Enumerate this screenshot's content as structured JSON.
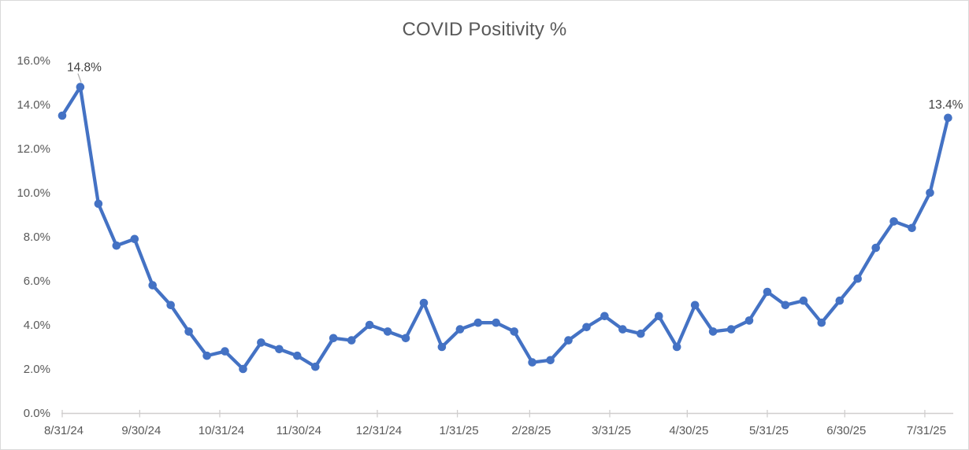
{
  "chart": {
    "colors": {
      "line": "#4472C4",
      "marker": "#4472C4",
      "title_text": "#595959",
      "axis_text": "#595959",
      "axis_line": "#D0CECE",
      "tick_mark": "#D0CECE",
      "data_label_text": "#404040",
      "leader_line": "#A6A6A6",
      "background": "#FFFFFF",
      "chart_border": "#D9D9D9"
    }
  },
  "chart_data": {
    "type": "line",
    "title": "COVID Positivity %",
    "series_name": "COVID Positivity %",
    "x": [
      "8/31/24",
      "9/7/24",
      "9/14/24",
      "9/21/24",
      "9/28/24",
      "10/5/24",
      "10/12/24",
      "10/19/24",
      "10/26/24",
      "11/2/24",
      "11/9/24",
      "11/16/24",
      "11/23/24",
      "11/30/24",
      "12/7/24",
      "12/14/24",
      "12/21/24",
      "12/28/24",
      "1/4/25",
      "1/11/25",
      "1/18/25",
      "1/25/25",
      "2/1/25",
      "2/8/25",
      "2/15/25",
      "2/22/25",
      "3/1/25",
      "3/8/25",
      "3/15/25",
      "3/22/25",
      "3/29/25",
      "4/5/25",
      "4/12/25",
      "4/19/25",
      "4/26/25",
      "5/3/25",
      "5/10/25",
      "5/17/25",
      "5/24/25",
      "5/31/25",
      "6/7/25",
      "6/14/25",
      "6/21/25",
      "6/28/25",
      "7/5/25",
      "7/12/25",
      "7/19/25",
      "7/26/25",
      "8/2/25",
      "8/9/25"
    ],
    "values": [
      13.5,
      14.8,
      9.5,
      7.6,
      7.9,
      5.8,
      4.9,
      3.7,
      2.6,
      2.8,
      2.0,
      3.2,
      2.9,
      2.6,
      2.1,
      3.4,
      3.3,
      4.0,
      3.7,
      3.4,
      5.0,
      3.0,
      3.8,
      4.1,
      4.1,
      3.7,
      2.3,
      2.4,
      3.3,
      3.9,
      4.4,
      3.8,
      3.6,
      4.4,
      3.0,
      4.9,
      3.7,
      3.8,
      4.2,
      5.5,
      4.9,
      5.1,
      4.1,
      5.1,
      6.1,
      7.5,
      8.7,
      8.4,
      10.0,
      13.4
    ],
    "values_unit": "percent",
    "xlabel": "",
    "ylabel": "",
    "ylim": [
      0,
      16
    ],
    "ytick_step": 2,
    "ytick_labels": [
      "0.0%",
      "2.0%",
      "4.0%",
      "6.0%",
      "8.0%",
      "10.0%",
      "12.0%",
      "14.0%",
      "16.0%"
    ],
    "xtick_labels": [
      "8/31/24",
      "9/30/24",
      "10/31/24",
      "11/30/24",
      "12/31/24",
      "1/31/25",
      "2/28/25",
      "3/31/25",
      "4/30/25",
      "5/31/25",
      "6/30/25",
      "7/31/25"
    ],
    "grid": false,
    "legend": false,
    "annotations": [
      {
        "point_index": 1,
        "text": "14.8%",
        "has_leader_line": true
      },
      {
        "point_index": 49,
        "text": "13.4%",
        "has_leader_line": false
      }
    ]
  }
}
